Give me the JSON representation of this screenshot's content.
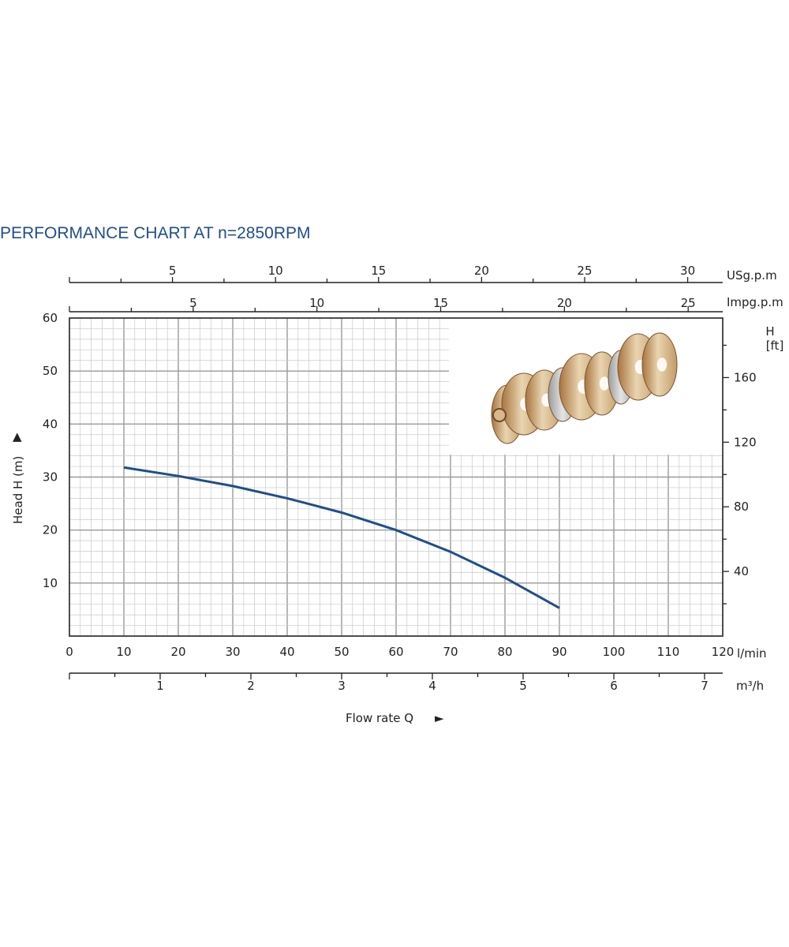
{
  "chart_data": {
    "type": "line",
    "title": "PERFORMANCE CHART AT n=2850RPM",
    "xlabel": "Flow rate Q",
    "ylabel": "Head H (m)",
    "x_unit": "l/min",
    "xlim": [
      0,
      120
    ],
    "ylim": [
      0,
      60
    ],
    "x_ticks": [
      "0",
      "10",
      "20",
      "30",
      "40",
      "50",
      "60",
      "70",
      "80",
      "90",
      "100",
      "110",
      "120"
    ],
    "y_ticks": [
      "10",
      "20",
      "30",
      "40",
      "50",
      "60"
    ],
    "secondary_axes": {
      "top_usgpm": {
        "unit": "USg.p.m",
        "ticks": [
          "5",
          "10",
          "15",
          "20",
          "25",
          "30"
        ]
      },
      "top_impgpm": {
        "unit": "Impg.p.m",
        "ticks": [
          "5",
          "10",
          "15",
          "20",
          "25"
        ]
      },
      "bottom_m3h": {
        "unit": "m³/h",
        "ticks": [
          "1",
          "2",
          "3",
          "4",
          "5",
          "6",
          "7"
        ]
      },
      "right_ft": {
        "unit_line1": "H",
        "unit_line2": "[ft]",
        "ticks": [
          "40",
          "80",
          "120",
          "160"
        ]
      }
    },
    "grid": true,
    "series": [
      {
        "x": [
          10,
          20,
          30,
          40,
          50,
          60,
          70,
          80,
          90
        ],
        "y": [
          31.8,
          30.2,
          28.3,
          26.0,
          23.3,
          20.0,
          15.9,
          11.0,
          5.3
        ]
      }
    ],
    "colors": {
      "curve": "#1f4e8c",
      "title": "#1f4e8c",
      "grid_major": "#9a9a9a",
      "grid_minor": "#c9c9c9"
    },
    "inset_image": "pump-impeller-stages-photo"
  },
  "arrows": {
    "y": "▲",
    "x": "►"
  }
}
